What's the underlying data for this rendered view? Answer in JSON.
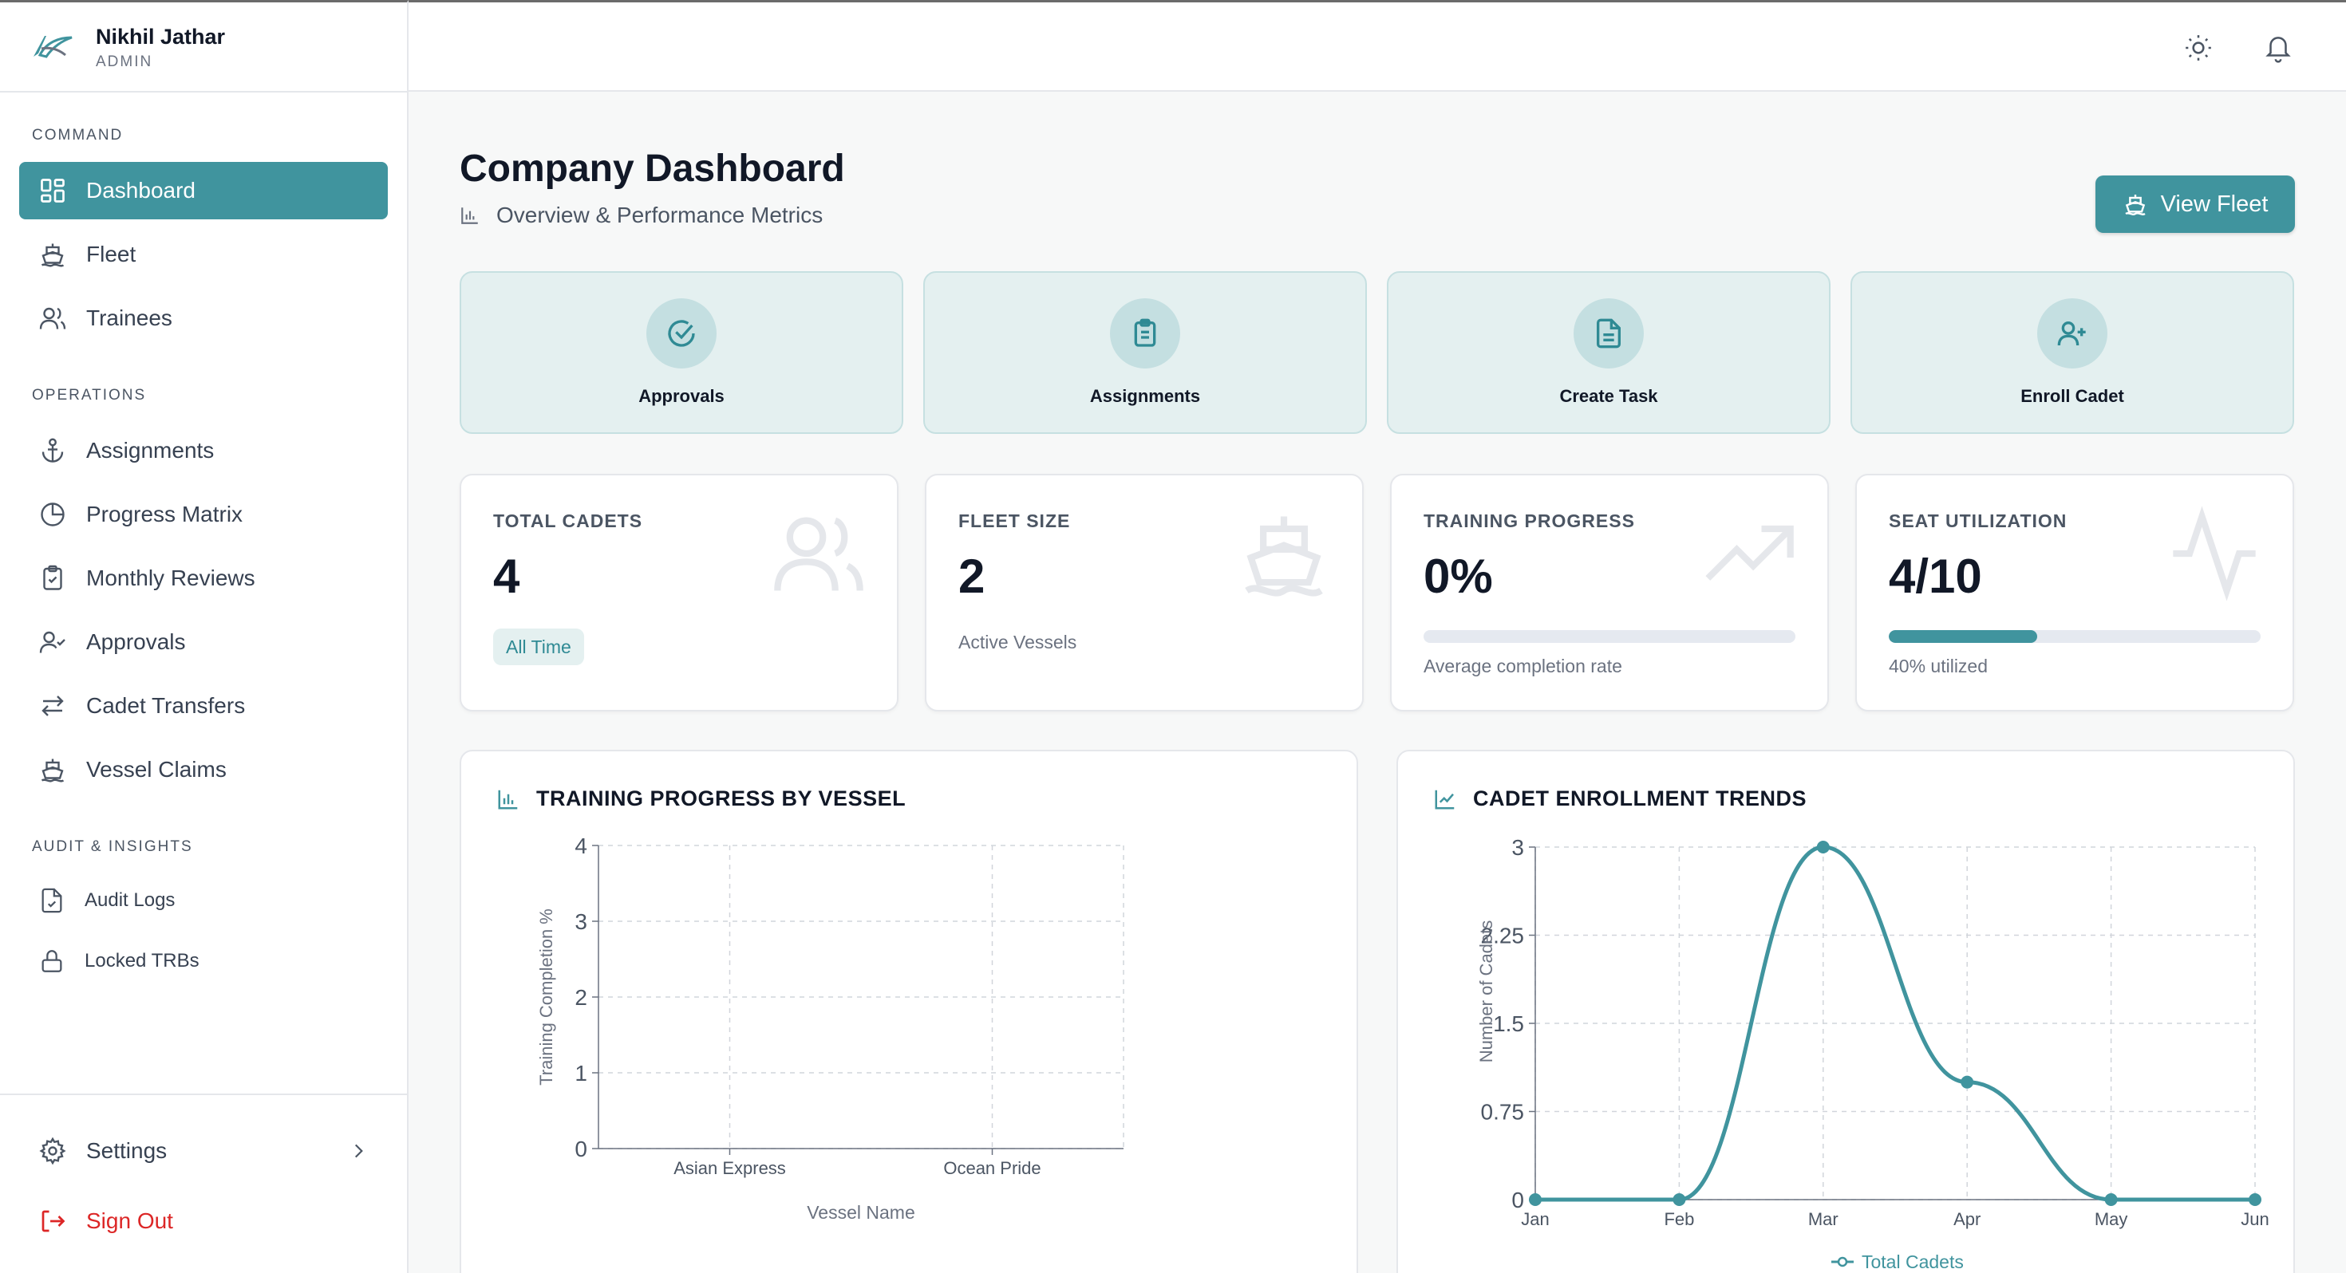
{
  "user": {
    "name": "Nikhil Jathar",
    "role": "ADMIN"
  },
  "sidebar": {
    "sections": [
      "COMMAND",
      "OPERATIONS",
      "AUDIT & INSIGHTS"
    ],
    "command": [
      {
        "label": "Dashboard",
        "icon": "grid-icon"
      },
      {
        "label": "Fleet",
        "icon": "ship-icon"
      },
      {
        "label": "Trainees",
        "icon": "users-icon"
      }
    ],
    "operations": [
      {
        "label": "Assignments",
        "icon": "anchor-icon"
      },
      {
        "label": "Progress Matrix",
        "icon": "pie-chart-icon"
      },
      {
        "label": "Monthly Reviews",
        "icon": "clipboard-check-icon"
      },
      {
        "label": "Approvals",
        "icon": "user-check-icon"
      },
      {
        "label": "Cadet Transfers",
        "icon": "transfer-icon"
      },
      {
        "label": "Vessel Claims",
        "icon": "ship-icon"
      }
    ],
    "audit": [
      {
        "label": "Audit Logs",
        "icon": "file-check-icon"
      },
      {
        "label": "Locked TRBs",
        "icon": "lock-icon"
      }
    ],
    "settings": "Settings",
    "signout": "Sign Out"
  },
  "header": {
    "title": "Company Dashboard",
    "subtitle": "Overview & Performance Metrics",
    "view_fleet": "View Fleet"
  },
  "quick_actions": [
    "Approvals",
    "Assignments",
    "Create Task",
    "Enroll Cadet"
  ],
  "stats": {
    "cadets": {
      "label": "TOTAL CADETS",
      "value": "4",
      "note": "All Time"
    },
    "fleet": {
      "label": "FLEET SIZE",
      "value": "2",
      "note": "Active Vessels"
    },
    "training": {
      "label": "TRAINING PROGRESS",
      "value": "0%",
      "note": "Average completion rate",
      "progress": 0
    },
    "seats": {
      "label": "SEAT UTILIZATION",
      "value": "4/10",
      "note": "40% utilized",
      "progress": 0.4
    }
  },
  "colors": {
    "accent": "#40949e",
    "accent_light": "#e4f0f0",
    "danger": "#dc2626"
  },
  "chart_data": [
    {
      "type": "bar",
      "title": "TRAINING PROGRESS BY VESSEL",
      "categories": [
        "Asian Express",
        "Ocean Pride"
      ],
      "values": [
        0,
        0
      ],
      "xlabel": "Vessel Name",
      "ylabel": "Training Completion %",
      "ylim": [
        0,
        4
      ],
      "yticks": [
        "0",
        "1",
        "2",
        "3",
        "4"
      ],
      "grid": true
    },
    {
      "type": "line",
      "title": "CADET ENROLLMENT TRENDS",
      "categories": [
        "Jan",
        "Feb",
        "Mar",
        "Apr",
        "May",
        "Jun"
      ],
      "series": [
        {
          "name": "Total Cadets",
          "values": [
            0,
            0,
            3,
            1,
            0,
            0
          ]
        }
      ],
      "ylabel": "Number of Cadets",
      "ylim": [
        0,
        3
      ],
      "yticks": [
        "0",
        "0.75",
        "1.5",
        "2.25",
        "3"
      ],
      "grid": true,
      "legend": "bottom"
    }
  ]
}
